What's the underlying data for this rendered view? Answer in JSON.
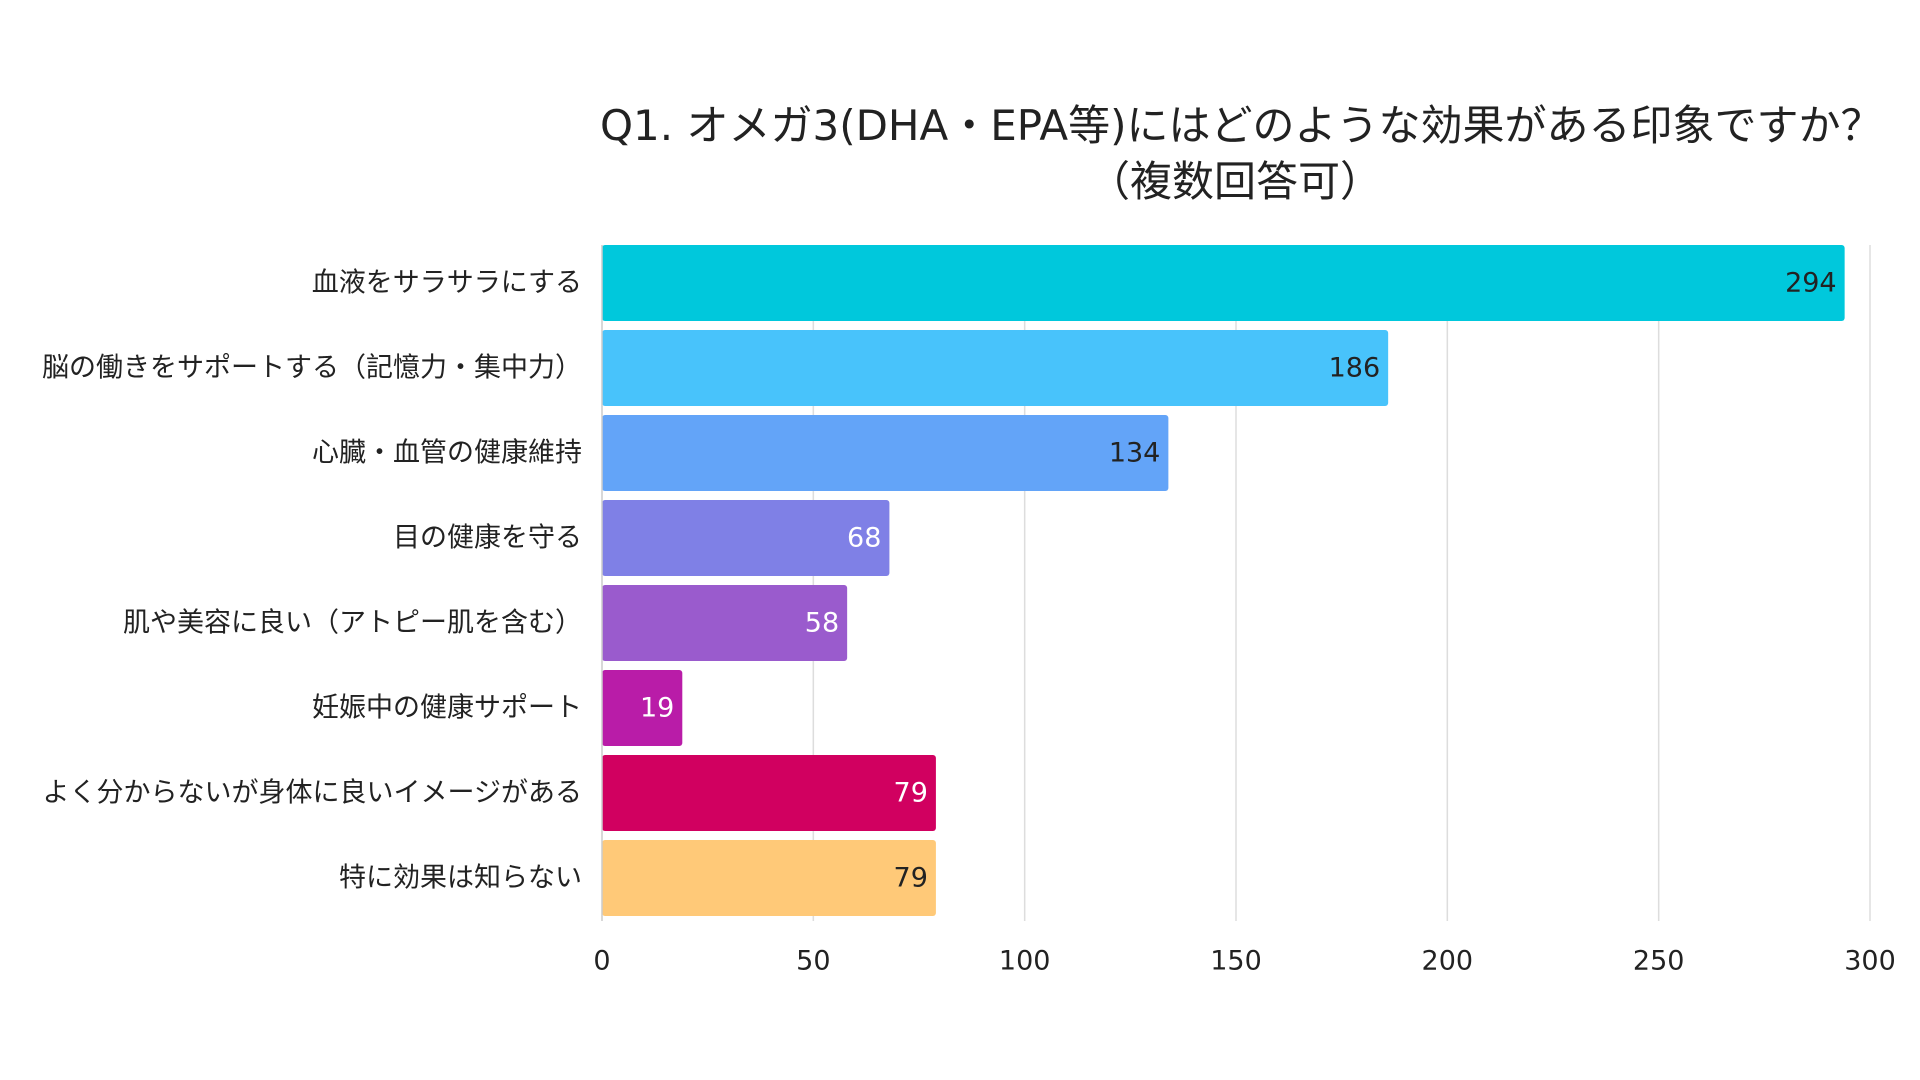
{
  "chart_data": {
    "type": "bar",
    "orientation": "horizontal",
    "title": "Q1. オメガ3(DHA・EPA等)にはどのような効果がある印象ですか？",
    "subtitle": "（複数回答可）",
    "xlabel": "",
    "ylabel": "",
    "xlim": [
      0,
      300
    ],
    "x_ticks": [
      0,
      50,
      100,
      150,
      200,
      250,
      300
    ],
    "grid": true,
    "legend": "none",
    "categories": [
      "血液をサラサラにする",
      "脳の働きをサポートする（記憶力・集中力）",
      "心臓・血管の健康維持",
      "目の健康を守る",
      "肌や美容に良い（アトピー肌を含む）",
      "妊娠中の健康サポート",
      "よく分からないが身体に良いイメージがある",
      "特に効果は知らない"
    ],
    "values": [
      294,
      186,
      134,
      68,
      58,
      19,
      79,
      79
    ],
    "colors": [
      "#00C8DC",
      "#48C3FB",
      "#63A4F8",
      "#7F80E6",
      "#9A5BCD",
      "#B91CA8",
      "#D10060",
      "#FFC978"
    ],
    "label_colors": [
      "#222222",
      "#222222",
      "#222222",
      "#ffffff",
      "#ffffff",
      "#ffffff",
      "#ffffff",
      "#222222"
    ]
  }
}
